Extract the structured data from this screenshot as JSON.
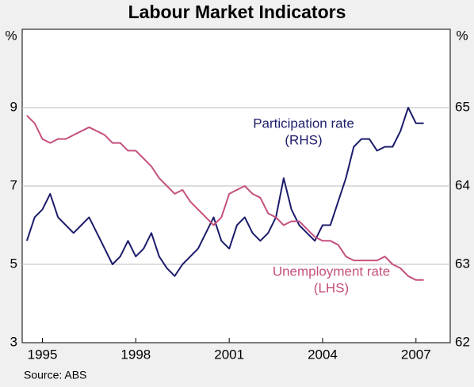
{
  "chart_data": {
    "type": "line",
    "title": "Labour Market Indicators",
    "y_label": "%",
    "y2_label": "%",
    "source": "Source: ABS",
    "xlim": [
      1994.35,
      2008.1
    ],
    "xticks": [
      1995,
      1998,
      2001,
      2004,
      2007
    ],
    "ylim": [
      3,
      11
    ],
    "yticks": [
      3,
      5,
      7,
      9
    ],
    "y2lim": [
      62,
      66
    ],
    "y2ticks": [
      62,
      63,
      64,
      65
    ],
    "grid": true,
    "x": [
      1994.5,
      1994.75,
      1995,
      1995.25,
      1995.5,
      1995.75,
      1996,
      1996.25,
      1996.5,
      1996.75,
      1997,
      1997.25,
      1997.5,
      1997.75,
      1998,
      1998.25,
      1998.5,
      1998.75,
      1999,
      1999.25,
      1999.5,
      1999.75,
      2000,
      2000.25,
      2000.5,
      2000.75,
      2001,
      2001.25,
      2001.5,
      2001.75,
      2002,
      2002.25,
      2002.5,
      2002.75,
      2003,
      2003.25,
      2003.5,
      2003.75,
      2004,
      2004.25,
      2004.5,
      2004.75,
      2005,
      2005.25,
      2005.5,
      2005.75,
      2006,
      2006.25,
      2006.5,
      2006.75,
      2007,
      2007.25
    ],
    "series": [
      {
        "name": "Participation rate",
        "sub": "(RHS)",
        "axis": "y2",
        "color": "#1c1c6b",
        "values": [
          63.3,
          63.6,
          63.7,
          63.9,
          63.6,
          63.5,
          63.4,
          63.5,
          63.6,
          63.4,
          63.2,
          63.0,
          63.1,
          63.3,
          63.1,
          63.2,
          63.4,
          63.1,
          62.95,
          62.85,
          63.0,
          63.1,
          63.2,
          63.4,
          63.6,
          63.3,
          63.2,
          63.5,
          63.6,
          63.4,
          63.3,
          63.4,
          63.6,
          64.1,
          63.7,
          63.5,
          63.4,
          63.3,
          63.5,
          63.5,
          63.8,
          64.1,
          64.5,
          64.6,
          64.6,
          64.45,
          64.5,
          64.5,
          64.7,
          65.0,
          64.8,
          64.8
        ]
      },
      {
        "name": "Unemployment rate",
        "sub": "(LHS)",
        "axis": "y",
        "color": "#c4507e",
        "values": [
          8.8,
          8.6,
          8.2,
          8.1,
          8.2,
          8.2,
          8.3,
          8.4,
          8.5,
          8.4,
          8.3,
          8.1,
          8.1,
          7.9,
          7.9,
          7.7,
          7.5,
          7.2,
          7.0,
          6.8,
          6.9,
          6.6,
          6.4,
          6.2,
          6.0,
          6.2,
          6.8,
          6.9,
          7.0,
          6.8,
          6.7,
          6.3,
          6.2,
          6.0,
          6.1,
          6.1,
          5.9,
          5.7,
          5.6,
          5.6,
          5.5,
          5.2,
          5.1,
          5.1,
          5.1,
          5.1,
          5.2,
          5.0,
          4.9,
          4.7,
          4.6,
          4.6
        ]
      }
    ]
  }
}
